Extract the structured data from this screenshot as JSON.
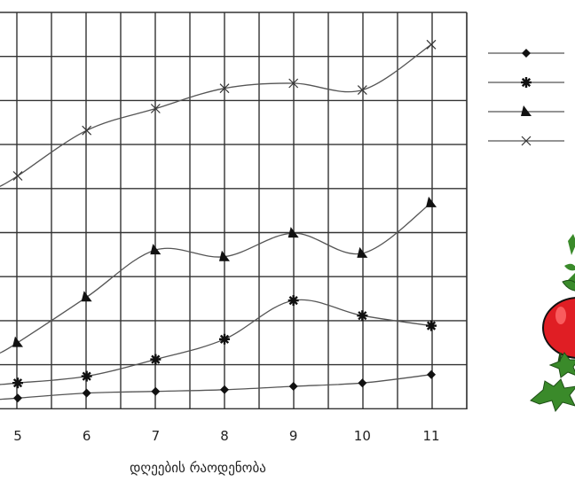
{
  "chart_data": {
    "type": "line",
    "x": [
      5,
      6,
      7,
      8,
      9,
      10,
      11
    ],
    "x_tick_labels": [
      "5",
      "6",
      "7",
      "8",
      "9",
      "10",
      "11"
    ],
    "xlabel": "დღეების რაოდენობა",
    "ylim": [
      0,
      19
    ],
    "grid": true,
    "legend_position": "right",
    "series": [
      {
        "marker": "diamond",
        "values": [
          0.3,
          0.6,
          0.7,
          0.8,
          1.0,
          1.2,
          1.7
        ]
      },
      {
        "marker": "asterisk",
        "values": [
          1.2,
          1.6,
          2.6,
          3.8,
          6.1,
          5.2,
          4.6
        ]
      },
      {
        "marker": "triangle",
        "values": [
          3.6,
          6.3,
          9.1,
          8.7,
          10.1,
          8.9,
          11.9
        ]
      },
      {
        "marker": "cross",
        "values": [
          13.5,
          16.2,
          17.5,
          18.7,
          19.0,
          18.6,
          21.3
        ]
      }
    ]
  },
  "decoration": {
    "tomato_icon": "tomato-icon"
  },
  "colors": {
    "line": "#555555",
    "marker": "#111111",
    "grid": "#333333",
    "tomato": "#e01e24",
    "leaf": "#3a8a2a"
  }
}
